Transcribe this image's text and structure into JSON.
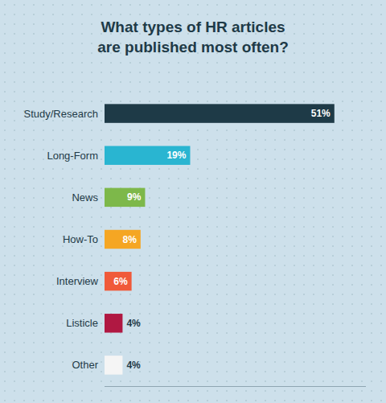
{
  "chart_data": {
    "type": "bar",
    "orientation": "horizontal",
    "title": "What types of HR articles\nare published most often?",
    "categories": [
      "Study/Research",
      "Long-Form",
      "News",
      "How-To",
      "Interview",
      "Listicle",
      "Other"
    ],
    "values": [
      51,
      19,
      9,
      8,
      6,
      4,
      4
    ],
    "value_labels": [
      "51%",
      "19%",
      "9%",
      "8%",
      "6%",
      "4%",
      "4%"
    ],
    "colors": [
      "#1e3a47",
      "#29b5d1",
      "#7db84a",
      "#f5a623",
      "#f05a3a",
      "#b01842",
      "#f5f5f5"
    ],
    "xlim": [
      0,
      58
    ],
    "data_labels": true,
    "tick_labels": "y",
    "grid": false
  }
}
